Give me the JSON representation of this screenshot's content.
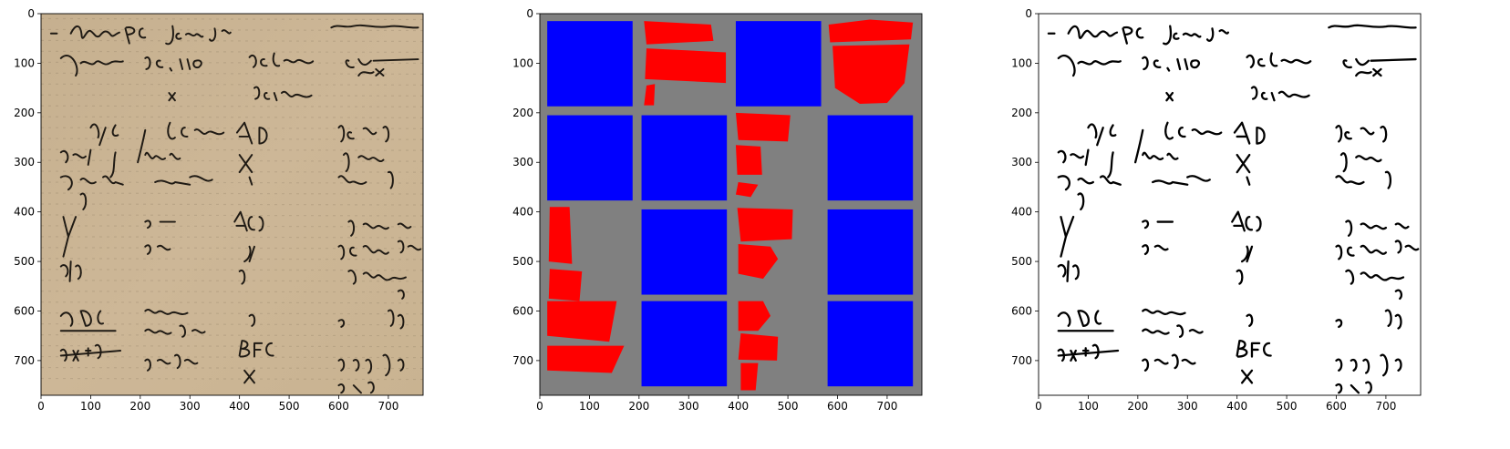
{
  "figure": {
    "panels": [
      {
        "name": "manuscript-original",
        "x_ticks": [
          "0",
          "100",
          "200",
          "300",
          "400",
          "500",
          "600",
          "700"
        ],
        "y_ticks": [
          "0",
          "100",
          "200",
          "300",
          "400",
          "500",
          "600",
          "700"
        ]
      },
      {
        "name": "patch-classification-map",
        "x_ticks": [
          "0",
          "100",
          "200",
          "300",
          "400",
          "500",
          "600",
          "700"
        ],
        "y_ticks": [
          "0",
          "100",
          "200",
          "300",
          "400",
          "500",
          "600",
          "700"
        ]
      },
      {
        "name": "binarized-manuscript",
        "x_ticks": [
          "0",
          "100",
          "200",
          "300",
          "400",
          "500",
          "600",
          "700"
        ],
        "y_ticks": [
          "0",
          "100",
          "200",
          "300",
          "400",
          "500",
          "600",
          "700"
        ]
      }
    ],
    "image_extent": [
      0,
      770
    ],
    "colors": {
      "parchment": "#cdb797",
      "ink": "#1f1a14",
      "grid_background": "#808080",
      "blue_patch": "#0000ff",
      "red_region": "#ff0000",
      "binary_background": "#ffffff",
      "binary_ink": "#000000"
    },
    "grid": {
      "rows": 4,
      "cols": 4,
      "blue_cells": [
        [
          0,
          0
        ],
        [
          0,
          2
        ],
        [
          1,
          0
        ],
        [
          1,
          1
        ],
        [
          1,
          3
        ],
        [
          2,
          1
        ],
        [
          2,
          3
        ],
        [
          3,
          1
        ],
        [
          3,
          3
        ]
      ]
    },
    "manuscript_text": [
      "Arilem",
      "P'CS.",
      "jam",
      "yd x ah-xy",
      "supposita",
      "DS, TTO.",
      "definitata",
      "y d x",
      "dx",
      "x",
      "differentur",
      "eq",
      "ex",
      "lein",
      "AD.",
      "qui 80",
      "vel",
      "abetu",
      "officiallt",
      "bi aqual",
      "neu ens",
      "X",
      "raber",
      "Y",
      "A(C)",
      "pro m",
      "lei",
      "y",
      "en ipsig",
      "FC,",
      "tn proge",
      "A(C)",
      "provenit",
      "y",
      "z",
      "y+x2",
      "rolem",
      "BFC",
      "fut y",
      "dr feinel",
      "X",
      "nd la"
    ]
  }
}
